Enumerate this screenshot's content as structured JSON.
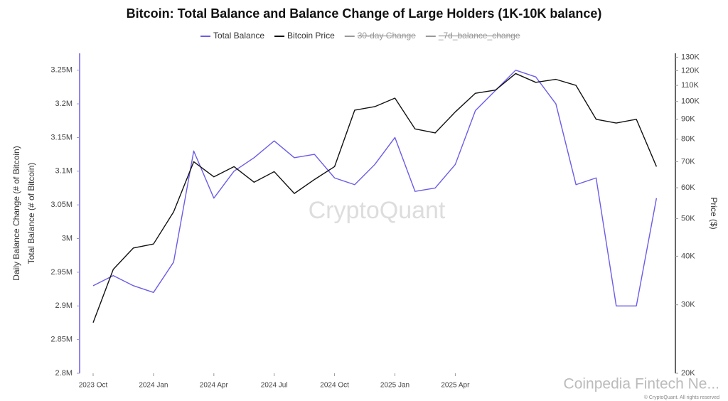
{
  "chart_data": {
    "type": "line",
    "title": "Bitcoin: Total Balance and Balance Change of Large Holders (1K-10K balance)",
    "x": [
      "2023 Oct",
      "2023 Nov",
      "2023 Dec",
      "2024 Jan",
      "2024 Feb",
      "2024 Mar",
      "2024 Apr",
      "2024 May",
      "2024 Jun",
      "2024 Jul",
      "2024 Aug",
      "2024 Sep",
      "2024 Oct",
      "2024 Nov",
      "2024 Dec",
      "2025 Jan",
      "2025 Feb",
      "2025 Mar",
      "2025 Apr",
      "2025 May",
      "2025 Jun",
      "2025 Jul",
      "2025 Aug",
      "2025 Sep",
      "2025 Oct",
      "2025 Nov",
      "2025 Dec",
      "2026 Jan",
      "2026 Feb"
    ],
    "xticks": [
      "2023 Oct",
      "2024 Jan",
      "2024 Apr",
      "2024 Jul",
      "2024 Oct",
      "2025 Jan",
      "2025 Apr"
    ],
    "series": [
      {
        "name": "Total Balance",
        "color": "#6b5ce7",
        "axis": "y",
        "values": [
          2930000,
          2945000,
          2930000,
          2920000,
          2965000,
          3130000,
          3060000,
          3100000,
          3120000,
          3145000,
          3120000,
          3125000,
          3090000,
          3080000,
          3110000,
          3150000,
          3070000,
          3075000,
          3110000,
          3190000,
          3220000,
          3250000,
          3240000,
          3200000,
          3080000,
          3090000,
          2900000,
          2900000,
          3060000
        ]
      },
      {
        "name": "Bitcoin Price",
        "color": "#111111",
        "axis": "y2",
        "values": [
          27000,
          37000,
          42000,
          43000,
          52000,
          70000,
          64000,
          68000,
          62000,
          66000,
          58000,
          63000,
          68000,
          95000,
          97000,
          102000,
          85000,
          83000,
          94000,
          105000,
          107000,
          118000,
          112000,
          114000,
          110000,
          90000,
          88000,
          90000,
          68000
        ]
      }
    ],
    "legend_hidden": [
      {
        "name": "30-day Change",
        "color": "#999999"
      },
      {
        "name": "_7d_balance_change",
        "color": "#999999"
      }
    ],
    "ylim": [
      2800000,
      3275000
    ],
    "yticks": [
      {
        "value": 2800000,
        "label": "2.8M"
      },
      {
        "value": 2850000,
        "label": "2.85M"
      },
      {
        "value": 2900000,
        "label": "2.9M"
      },
      {
        "value": 2950000,
        "label": "2.95M"
      },
      {
        "value": 3000000,
        "label": "3M"
      },
      {
        "value": 3050000,
        "label": "3.05M"
      },
      {
        "value": 3100000,
        "label": "3.1M"
      },
      {
        "value": 3150000,
        "label": "3.15M"
      },
      {
        "value": 3200000,
        "label": "3.2M"
      },
      {
        "value": 3250000,
        "label": "3.25M"
      }
    ],
    "y2lim": [
      20000,
      133000
    ],
    "y2log": true,
    "y2ticks": [
      {
        "value": 20000,
        "label": "20K"
      },
      {
        "value": 30000,
        "label": "30K"
      },
      {
        "value": 40000,
        "label": "40K"
      },
      {
        "value": 50000,
        "label": "50K"
      },
      {
        "value": 60000,
        "label": "60K"
      },
      {
        "value": 70000,
        "label": "70K"
      },
      {
        "value": 80000,
        "label": "80K"
      },
      {
        "value": 90000,
        "label": "90K"
      },
      {
        "value": 100000,
        "label": "100K"
      },
      {
        "value": 110000,
        "label": "110K"
      },
      {
        "value": 120000,
        "label": "120K"
      },
      {
        "value": 130000,
        "label": "130K"
      }
    ],
    "ylabel": "Total Balance (# of Bitcoin)",
    "ylabel_outer": "Daily Balance Change (# of Bitcoin)",
    "y2label": "Price ($)",
    "watermark": "CryptoQuant",
    "watermark_source": "Coinpedia Fintech Ne...",
    "footer": "© CryptoQuant. All rights reserved"
  }
}
